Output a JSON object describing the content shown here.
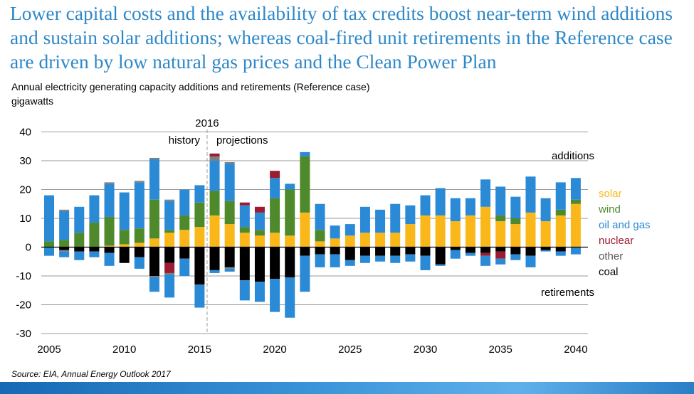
{
  "headline": "Lower capital costs and the availability of tax credits boost near-term wind additions and sustain solar additions; whereas coal-fired unit retirements in the Reference case are driven by low natural gas prices and the Clean Power Plan",
  "source": "Source: EIA, Annual Energy Outlook 2017",
  "colors": {
    "headline": "#2e88c8",
    "solar": "#f9b71a",
    "wind": "#4e8a2b",
    "oil_and_gas": "#2b8ad6",
    "nuclear": "#9b1c31",
    "other": "#7f7f7f",
    "coal": "#000000"
  },
  "chart_data": {
    "type": "bar",
    "stacked": true,
    "title": "Annual electricity generating capacity additions and retirements (Reference case)",
    "ylabel": "gigawatts",
    "ylim": [
      -30,
      40
    ],
    "yticks": [
      40,
      30,
      20,
      10,
      0,
      -10,
      -20,
      -30
    ],
    "xticks": [
      2005,
      2010,
      2015,
      2020,
      2025,
      2030,
      2035,
      2040
    ],
    "grid": true,
    "divider_year": "2016",
    "history_label": "history",
    "projections_label": "projections",
    "additions_label": "additions",
    "retirements_label": "retirements",
    "legend_position": "right",
    "categories": [
      2005,
      2006,
      2007,
      2008,
      2009,
      2010,
      2011,
      2012,
      2013,
      2014,
      2015,
      2016,
      2017,
      2018,
      2019,
      2020,
      2021,
      2022,
      2023,
      2024,
      2025,
      2026,
      2027,
      2028,
      2029,
      2030,
      2031,
      2032,
      2033,
      2034,
      2035,
      2036,
      2037,
      2038,
      2039,
      2040
    ],
    "series": [
      {
        "name": "solar",
        "group": "additions",
        "color_key": "solar",
        "values": [
          0,
          0,
          0,
          0,
          0.5,
          1,
          1.5,
          3,
          5,
          6,
          7,
          11,
          8,
          5,
          4,
          5,
          4,
          12,
          2,
          3,
          4,
          5,
          5,
          5,
          8,
          11,
          11,
          9,
          11,
          14,
          9,
          8,
          12,
          9,
          11,
          15
        ]
      },
      {
        "name": "wind",
        "group": "additions",
        "color_key": "wind",
        "values": [
          2,
          2.5,
          5,
          8.5,
          10,
          5,
          5,
          13.5,
          1,
          5,
          8.5,
          8.5,
          8,
          2,
          2,
          12,
          16,
          19.5,
          4,
          0,
          0,
          0,
          0,
          0,
          0,
          0,
          0,
          0,
          0,
          0,
          2,
          2,
          0,
          0,
          2,
          1.5
        ]
      },
      {
        "name": "oil and gas",
        "group": "additions",
        "color_key": "oil_and_gas",
        "values": [
          16,
          10,
          9,
          9.5,
          11.5,
          13,
          16,
          14,
          10,
          9,
          6,
          10.5,
          13,
          7.5,
          6,
          7,
          2,
          1.5,
          9,
          4.5,
          4,
          9,
          8,
          10,
          6.5,
          7,
          9.5,
          8,
          6,
          9.5,
          10,
          7.5,
          12.5,
          8,
          9.5,
          7.5
        ]
      },
      {
        "name": "other",
        "group": "additions",
        "color_key": "other",
        "values": [
          0,
          0.5,
          0,
          0,
          0.5,
          0,
          0.5,
          0.5,
          0.5,
          0,
          0,
          1.5,
          0.5,
          0,
          0,
          0,
          0,
          0,
          0,
          0,
          0,
          0,
          0,
          0,
          0,
          0,
          0,
          0,
          0,
          0,
          0,
          0,
          0,
          0,
          0,
          0
        ]
      },
      {
        "name": "nuclear",
        "group": "additions",
        "color_key": "nuclear",
        "values": [
          0,
          0,
          0,
          0,
          0,
          0,
          0,
          0,
          0,
          0,
          0,
          1,
          0,
          1,
          2,
          2.5,
          0,
          0,
          0,
          0,
          0,
          0,
          0,
          0,
          0,
          0,
          0,
          0,
          0,
          0,
          0,
          0,
          0,
          0,
          0,
          0
        ]
      },
      {
        "name": "coal",
        "group": "retirements",
        "color_key": "coal",
        "values": [
          0,
          1,
          1.5,
          1.5,
          2,
          5.5,
          3.5,
          10,
          5.5,
          4,
          13,
          8,
          7,
          11.5,
          12,
          11,
          10.5,
          3,
          2.5,
          2.5,
          4.5,
          3,
          3,
          3,
          2.5,
          3,
          6,
          1,
          2,
          2,
          1.5,
          2.5,
          3,
          1,
          1.5,
          0
        ]
      },
      {
        "name": "nuclear",
        "group": "retirements",
        "color_key": "nuclear",
        "values": [
          0,
          0,
          0,
          0,
          0,
          0,
          0,
          0,
          3.5,
          0,
          0,
          0,
          0,
          0,
          0,
          0,
          0,
          0,
          0,
          0,
          0,
          0,
          0,
          0,
          0,
          0,
          0,
          0,
          0,
          1,
          2.5,
          0,
          0,
          0,
          0,
          0
        ]
      },
      {
        "name": "other",
        "group": "retirements",
        "color_key": "other",
        "values": [
          0,
          0.5,
          0,
          0,
          0,
          0,
          0,
          0.5,
          0.5,
          0,
          0,
          0,
          0.5,
          0,
          0,
          0,
          0,
          0,
          0,
          0,
          0,
          0,
          0,
          0,
          0,
          0,
          0,
          0,
          0,
          0,
          0,
          0,
          0,
          0,
          0,
          0
        ]
      },
      {
        "name": "oil and gas",
        "group": "retirements",
        "color_key": "oil_and_gas",
        "values": [
          3,
          2,
          3,
          2,
          4.5,
          0,
          4,
          5,
          8,
          6,
          8,
          1,
          1,
          7,
          7,
          11.5,
          14,
          12.5,
          4.5,
          4.5,
          2,
          2.5,
          2,
          2.5,
          2.5,
          5,
          0.5,
          3,
          1,
          3.5,
          2,
          2,
          4,
          0.5,
          1.5,
          2.5
        ]
      }
    ],
    "legend": [
      {
        "label": "solar",
        "color_key": "solar"
      },
      {
        "label": "wind",
        "color_key": "wind"
      },
      {
        "label": "oil and gas",
        "color_key": "oil_and_gas"
      },
      {
        "label": "nuclear",
        "color_key": "nuclear"
      },
      {
        "label": "other",
        "color_key": "other"
      },
      {
        "label": "coal",
        "color_key": "coal"
      }
    ]
  }
}
